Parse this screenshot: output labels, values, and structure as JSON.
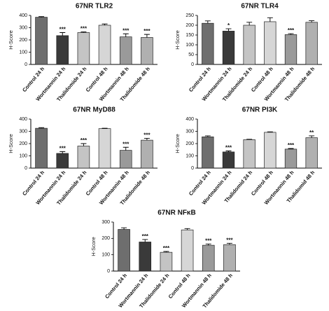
{
  "chart_data": [
    {
      "type": "bar",
      "title": "67NR TLR2",
      "y_label": "H-Score",
      "categories": [
        "Control 24 h",
        "Wortmannin 24 h",
        "Thalidomide 24 h",
        "Control 48 h",
        "Wortmannin 48 h",
        "Thalidomide 48 h"
      ],
      "values": [
        385,
        235,
        260,
        320,
        225,
        220
      ],
      "errors": [
        5,
        25,
        5,
        10,
        25,
        25
      ],
      "significance": [
        null,
        "***",
        "***",
        null,
        "***",
        "***"
      ],
      "colors": [
        "#6e6e6e",
        "#3a3a3a",
        "#c4c4c4",
        "#d6d6d6",
        "#9a9a9a",
        "#b0b0b0"
      ],
      "ylim": [
        0,
        400
      ],
      "yticks": [
        0,
        100,
        200,
        300,
        400
      ]
    },
    {
      "type": "bar",
      "title": "67NR TLR4",
      "y_label": "H-Score",
      "categories": [
        "Control 24 h",
        "Wortmannin 24 h",
        "Thalidomide 24 h",
        "Control 48 h",
        "Wortmannin 48 h",
        "Thalidomide 48 h"
      ],
      "values": [
        210,
        170,
        200,
        218,
        152,
        215
      ],
      "errors": [
        12,
        12,
        15,
        20,
        5,
        8
      ],
      "significance": [
        null,
        "*",
        null,
        null,
        "***",
        null
      ],
      "colors": [
        "#6e6e6e",
        "#3a3a3a",
        "#c4c4c4",
        "#d6d6d6",
        "#9a9a9a",
        "#b0b0b0"
      ],
      "ylim": [
        0,
        250
      ],
      "yticks": [
        0,
        50,
        100,
        150,
        200,
        250
      ]
    },
    {
      "type": "bar",
      "title": "67NR MyD88",
      "y_label": "H-Score",
      "categories": [
        "Control 24 h",
        "Wortmannin 24 h",
        "Thalidomide 24 h",
        "Control 48 h",
        "Wortmannin 48 h",
        "Thalidomide 48 h"
      ],
      "values": [
        325,
        120,
        180,
        322,
        145,
        228
      ],
      "errors": [
        5,
        15,
        20,
        3,
        25,
        15
      ],
      "significance": [
        null,
        "***",
        "***",
        null,
        "***",
        "***"
      ],
      "colors": [
        "#6e6e6e",
        "#3a3a3a",
        "#c4c4c4",
        "#d6d6d6",
        "#9a9a9a",
        "#b0b0b0"
      ],
      "ylim": [
        0,
        400
      ],
      "yticks": [
        0,
        100,
        200,
        300,
        400
      ]
    },
    {
      "type": "bar",
      "title": "67NR PI3K",
      "y_label": "H-Score",
      "categories": [
        "Control 24 h",
        "Wortmannin 24 h",
        "Thalidomid 24 h",
        "Control 48 h",
        "Wortmannin 48 h",
        "Thalidomid 48 h"
      ],
      "values": [
        255,
        132,
        232,
        292,
        155,
        248
      ],
      "errors": [
        8,
        8,
        3,
        4,
        5,
        15
      ],
      "significance": [
        null,
        "***",
        null,
        null,
        "***",
        "**"
      ],
      "colors": [
        "#6e6e6e",
        "#3a3a3a",
        "#c4c4c4",
        "#d6d6d6",
        "#9a9a9a",
        "#b0b0b0"
      ],
      "ylim": [
        0,
        400
      ],
      "yticks": [
        0,
        100,
        200,
        300,
        400
      ]
    },
    {
      "type": "bar",
      "title": "67NR NFκB",
      "y_label": "H-Score",
      "categories": [
        "Control 24 h",
        "Wortmannin 24 h",
        "Thalidomide 24 h",
        "Control 48 h",
        "Wortmannin 48 h",
        "Thalidomide 48 h"
      ],
      "values": [
        255,
        178,
        115,
        252,
        158,
        162
      ],
      "errors": [
        10,
        15,
        5,
        8,
        8,
        8
      ],
      "significance": [
        null,
        "***",
        "***",
        null,
        "***",
        "***"
      ],
      "colors": [
        "#6e6e6e",
        "#3a3a3a",
        "#c4c4c4",
        "#d6d6d6",
        "#9a9a9a",
        "#b0b0b0"
      ],
      "ylim": [
        0,
        300
      ],
      "yticks": [
        0,
        100,
        200,
        300
      ]
    }
  ]
}
